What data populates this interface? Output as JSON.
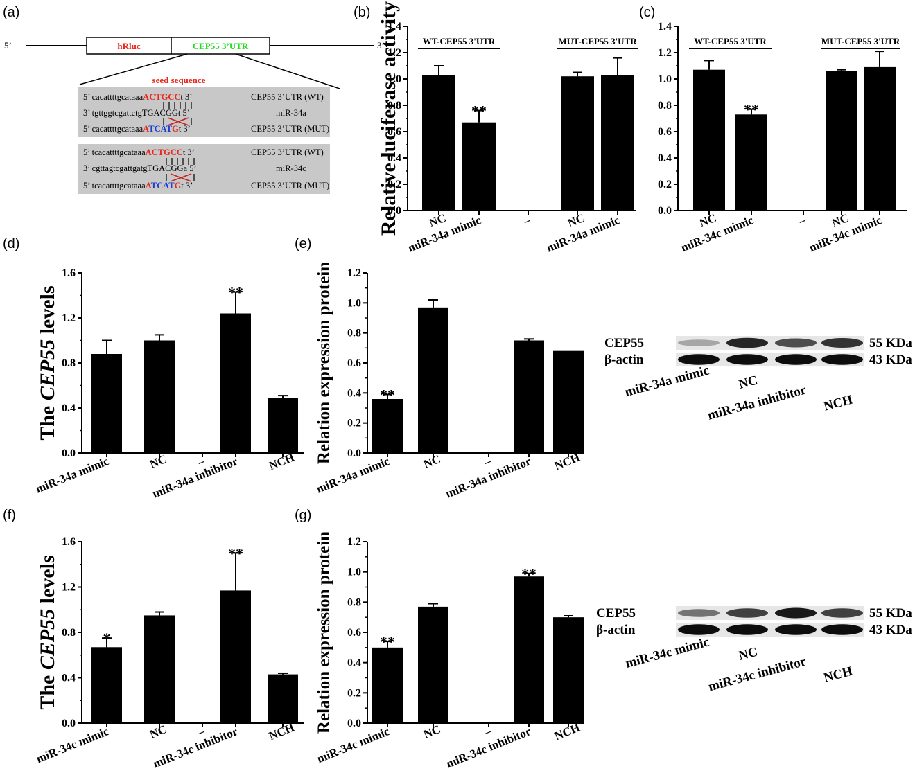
{
  "panel_letters": {
    "a": "(a)",
    "b": "(b)",
    "c": "(c)",
    "d": "(d)",
    "e": "(e)",
    "f": "(f)",
    "g": "(g)"
  },
  "construct": {
    "five_prime": "5’",
    "three_prime": "3’",
    "box1": "hRluc",
    "box2": "CEP55 3’UTR",
    "seed_label": "seed sequence",
    "colors": {
      "hRluc": "#e8281e",
      "utr": "#22dd22",
      "seed": "#e8281e",
      "mut": "#1a3ccf",
      "box_bg": "#c8c8c8"
    },
    "block_a": {
      "r1_pre": "5’  cacattttgcataaa",
      "r1_seed": "ACTGCC",
      "r1_post": "t  3’",
      "r1_label": "CEP55 3’UTR (WT)",
      "r2_pre": "3’  tgttggtcgattctgT",
      "r2_mid": "GACGG",
      "r2_post": "t  5’",
      "r2_label": "miR-34a",
      "r3_pre": "5’  cacattttgcataaa",
      "r3_a": "A",
      "r3_mut": "TCAT",
      "r3_g": "G",
      "r3_post": "t  3’",
      "r3_label": "CEP55 3’UTR (MUT)"
    },
    "block_c": {
      "r1_pre": "5’  tcacattttgcataaa",
      "r1_seed": "ACTGCC",
      "r1_post": "t  3’",
      "r1_label": "CEP55 3’UTR (WT)",
      "r2_pre": "3’ cgttagtcgattgatgT",
      "r2_mid": "GACGG",
      "r2_post": "a 5’",
      "r2_label": "miR-34c",
      "r3_pre": "5’  tcacattttgcataaa",
      "r3_a": "A",
      "r3_mut": "TCAT",
      "r3_g": "G",
      "r3_post": "t  3’",
      "r3_label": "CEP55 3’UTR (MUT)"
    }
  },
  "chart_data": [
    {
      "id": "b",
      "type": "bar",
      "ylabel": "Relative luciferase activity",
      "ylim": [
        0,
        1.4
      ],
      "yticks": [
        "0.0",
        "0.2",
        "0.4",
        "0.6",
        "0.8",
        "1.0",
        "1.2",
        "1.4"
      ],
      "categories": [
        "NC",
        "miR-34a mimic",
        "–",
        "NC",
        "miR-34a mimic"
      ],
      "values": [
        1.03,
        0.67,
        null,
        1.02,
        1.03
      ],
      "errors": [
        0.07,
        0.09,
        null,
        0.03,
        0.13
      ],
      "significance": [
        "",
        "**",
        "",
        "",
        ""
      ],
      "groups": [
        {
          "label": "WT-CEP55 3'UTR",
          "span": [
            0,
            1
          ]
        },
        {
          "label": "MUT-CEP55 3'UTR",
          "span": [
            3,
            4
          ]
        }
      ]
    },
    {
      "id": "c",
      "type": "bar",
      "ylabel": "",
      "ylim": [
        0,
        1.4
      ],
      "yticks": [
        "0.0",
        "0.2",
        "0.4",
        "0.6",
        "0.8",
        "1.0",
        "1.2",
        "1.4"
      ],
      "categories": [
        "NC",
        "miR-34c mimic",
        "–",
        "NC",
        "miR-34c mimic"
      ],
      "values": [
        1.07,
        0.73,
        null,
        1.06,
        1.09
      ],
      "errors": [
        0.07,
        0.04,
        null,
        0.01,
        0.12
      ],
      "significance": [
        "",
        "**",
        "",
        "",
        ""
      ],
      "groups": [
        {
          "label": "WT-CEP55 3'UTR",
          "span": [
            0,
            1
          ]
        },
        {
          "label": "MUT-CEP55 3'UTR",
          "span": [
            3,
            4
          ]
        }
      ]
    },
    {
      "id": "d",
      "type": "bar",
      "ylabel_pre": "The ",
      "ylabel_it": "CEP55",
      "ylabel_post": " levels",
      "ylim": [
        0,
        1.6
      ],
      "yticks": [
        "0.0",
        "0.4",
        "0.8",
        "1.2",
        "1.6"
      ],
      "categories": [
        "miR-34a mimic",
        "NC",
        "–",
        "miR-34a inhibitor",
        "NCH"
      ],
      "values": [
        0.88,
        1.0,
        null,
        1.24,
        0.49
      ],
      "errors": [
        0.12,
        0.05,
        null,
        0.19,
        0.02
      ],
      "significance": [
        "",
        "",
        "",
        "**",
        ""
      ]
    },
    {
      "id": "e",
      "type": "bar",
      "ylabel": "Relation expression protein",
      "ylim": [
        0,
        1.2
      ],
      "yticks": [
        "0.0",
        "0.2",
        "0.4",
        "0.6",
        "0.8",
        "1.0",
        "1.2"
      ],
      "categories": [
        "miR-34a mimic",
        "NC",
        "–",
        "miR-34a inhibitor",
        "NCH"
      ],
      "values": [
        0.36,
        0.97,
        null,
        0.75,
        0.68
      ],
      "errors": [
        0.03,
        0.05,
        null,
        0.01,
        0.0
      ],
      "significance": [
        "**",
        "",
        "",
        "",
        ""
      ]
    },
    {
      "id": "f",
      "type": "bar",
      "ylabel_pre": "The ",
      "ylabel_it": "CEP55",
      "ylabel_post": " levels",
      "ylim": [
        0,
        1.6
      ],
      "yticks": [
        "0.0",
        "0.4",
        "0.8",
        "1.2",
        "1.6"
      ],
      "categories": [
        "miR-34c mimic",
        "NC",
        "–",
        "miR-34c inhibitor",
        "NCH"
      ],
      "values": [
        0.67,
        0.95,
        null,
        1.17,
        0.43
      ],
      "errors": [
        0.08,
        0.03,
        null,
        0.33,
        0.01
      ],
      "significance": [
        "*",
        "",
        "",
        "**",
        ""
      ]
    },
    {
      "id": "g",
      "type": "bar",
      "ylabel": "Relation expression protein",
      "ylim": [
        0,
        1.2
      ],
      "yticks": [
        "0.0",
        "0.2",
        "0.4",
        "0.6",
        "0.8",
        "1.0",
        "1.2"
      ],
      "categories": [
        "miR-34c mimic",
        "NC",
        "–",
        "miR-34c inhibitor",
        "NCH"
      ],
      "values": [
        0.5,
        0.77,
        null,
        0.97,
        0.7
      ],
      "errors": [
        0.04,
        0.02,
        null,
        0.02,
        0.01
      ],
      "significance": [
        "**",
        "",
        "",
        "**",
        ""
      ]
    }
  ],
  "westerns": [
    {
      "id": "wb-e",
      "rows": [
        "CEP55",
        "β-actin"
      ],
      "sizes": [
        "55 KDa",
        "43 KDa"
      ],
      "lanes": [
        "miR-34a mimic",
        "NC",
        "miR-34a inhibitor",
        "NCH"
      ],
      "intensities": [
        [
          0.35,
          0.85,
          0.7,
          0.8
        ],
        [
          0.95,
          0.95,
          0.95,
          0.95
        ]
      ]
    },
    {
      "id": "wb-g",
      "rows": [
        "CEP55",
        "β-actin"
      ],
      "sizes": [
        "55 KDa",
        "43 KDa"
      ],
      "lanes": [
        "miR-34c mimic",
        "NC",
        "miR-34c inhibitor",
        "NCH"
      ],
      "intensities": [
        [
          0.55,
          0.75,
          0.9,
          0.75
        ],
        [
          0.95,
          0.95,
          0.95,
          0.95
        ]
      ]
    }
  ]
}
